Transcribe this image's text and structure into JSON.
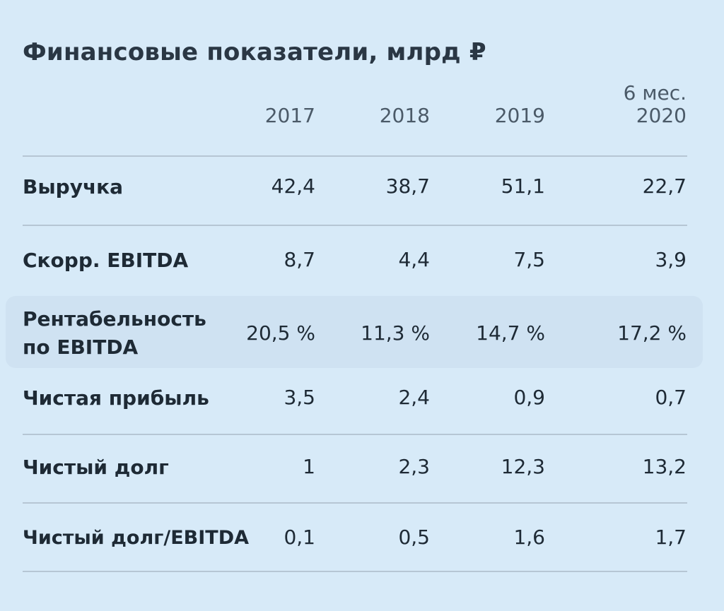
{
  "title": "Финансовые показатели, млрд ₽",
  "columns": [
    {
      "label": "2017",
      "sublabel": ""
    },
    {
      "label": "2018",
      "sublabel": ""
    },
    {
      "label": "2019",
      "sublabel": ""
    },
    {
      "label": "2020",
      "sublabel": "6 мес."
    }
  ],
  "rows": [
    {
      "label": "Выручка",
      "values": [
        "42,4",
        "38,7",
        "51,1",
        "22,7"
      ]
    },
    {
      "label": "Скорр. EBITDA",
      "values": [
        "8,7",
        "4,4",
        "7,5",
        "3,9"
      ]
    },
    {
      "label": "Рентабельность по EBITDA",
      "label_lines": [
        "Рентабельность",
        "по EBITDA"
      ],
      "values": [
        "20,5 %",
        "11,3 %",
        "14,7 %",
        "17,2 %"
      ],
      "highlighted": true
    },
    {
      "label": "Чистая прибыль",
      "values": [
        "3,5",
        "2,4",
        "0,9",
        "0,7"
      ]
    },
    {
      "label": "Чистый долг",
      "values": [
        "1",
        "2,3",
        "12,3",
        "13,2"
      ]
    },
    {
      "label": "Чистый долг/EBITDA",
      "values": [
        "0,1",
        "0,5",
        "1,6",
        "1,7"
      ]
    }
  ],
  "chart_data": {
    "type": "table",
    "title": "Финансовые показатели, млрд ₽",
    "columns": [
      "2017",
      "2018",
      "2019",
      "6 мес. 2020"
    ],
    "rows": [
      {
        "name": "Выручка",
        "values": [
          42.4,
          38.7,
          51.1,
          22.7
        ]
      },
      {
        "name": "Скорр. EBITDA",
        "values": [
          8.7,
          4.4,
          7.5,
          3.9
        ]
      },
      {
        "name": "Рентабельность по EBITDA",
        "values": [
          20.5,
          11.3,
          14.7,
          17.2
        ],
        "unit": "%"
      },
      {
        "name": "Чистая прибыль",
        "values": [
          3.5,
          2.4,
          0.9,
          0.7
        ]
      },
      {
        "name": "Чистый долг",
        "values": [
          1,
          2.3,
          12.3,
          13.2
        ]
      },
      {
        "name": "Чистый долг/EBITDA",
        "values": [
          0.1,
          0.5,
          1.6,
          1.7
        ]
      }
    ]
  },
  "colors": {
    "background": "#d7eaf8",
    "highlight_row": "#cfe2f2",
    "divider": "#b6c6d4",
    "text": "#1e2a35",
    "header_text": "#4b5a68"
  }
}
